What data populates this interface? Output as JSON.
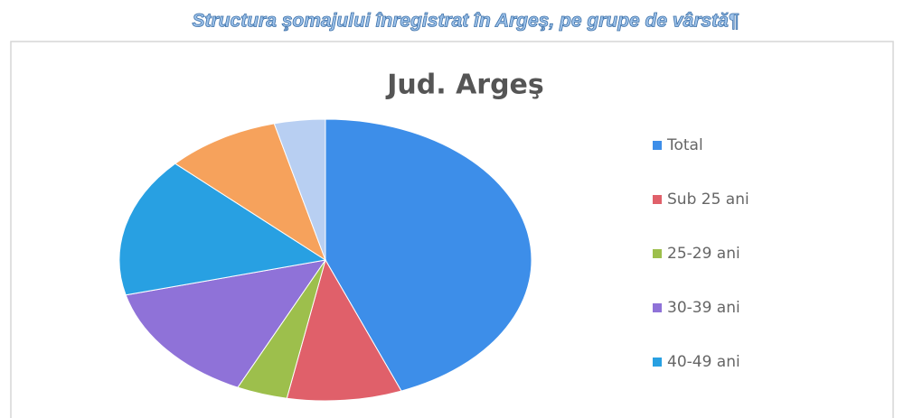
{
  "document_title": "Structura şomajului înregistrat în Argeş, pe grupe de vârstă¶",
  "chart_data": {
    "type": "pie",
    "title": "Jud. Argeş",
    "categories": [
      "Total",
      "Sub 25 ani",
      "25-29 ani",
      "30-39 ani",
      "40-49 ani",
      null,
      null
    ],
    "values": [
      44,
      9,
      4,
      14,
      16,
      9,
      4
    ],
    "colors": [
      "#3d8ee9",
      "#e0606a",
      "#9dbf4c",
      "#8f72d8",
      "#28a0e2",
      "#f6a25c",
      "#b8cff2"
    ],
    "legend": "right"
  }
}
